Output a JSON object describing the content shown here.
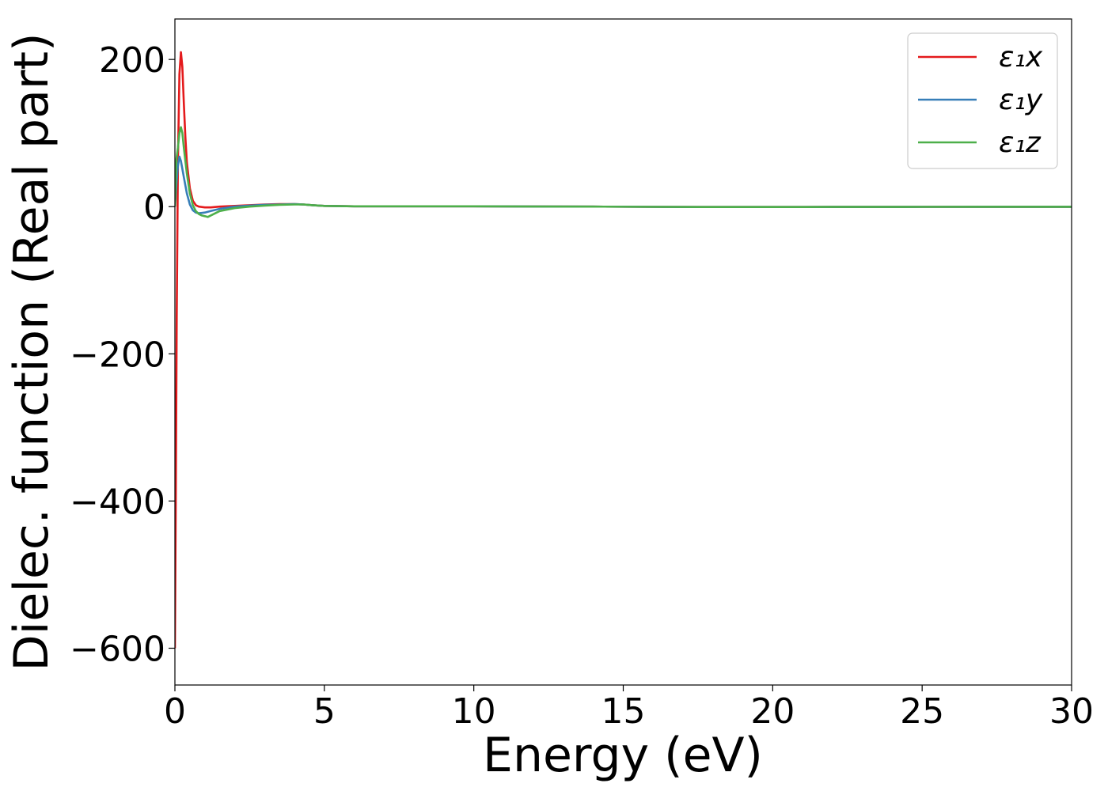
{
  "chart_data": {
    "type": "line",
    "title": "",
    "xlabel": "Energy (eV)",
    "ylabel": "Dielec. function (Real part)",
    "xlim": [
      0,
      30
    ],
    "ylim": [
      -650,
      255
    ],
    "xticks": [
      0,
      5,
      10,
      15,
      20,
      25,
      30
    ],
    "yticks": [
      -600,
      -400,
      -200,
      0,
      200
    ],
    "xtick_labels": [
      "0",
      "5",
      "10",
      "15",
      "20",
      "25",
      "30"
    ],
    "ytick_labels": [
      "−600",
      "−400",
      "−200",
      "0",
      "200"
    ],
    "grid": false,
    "legend_position": "top-right",
    "series": [
      {
        "name": "ε₁x",
        "color": "#e41a1c",
        "x": [
          0.0,
          0.03,
          0.06,
          0.1,
          0.15,
          0.2,
          0.25,
          0.3,
          0.35,
          0.4,
          0.5,
          0.6,
          0.7,
          0.8,
          1.0,
          1.2,
          1.5,
          2.0,
          2.5,
          3.0,
          3.5,
          4.0,
          4.3,
          4.6,
          5.0,
          6.0,
          7.0,
          8.0,
          9.0,
          10.0,
          11.0,
          12.0,
          14.0,
          16.0,
          18.0,
          20.0,
          22.0,
          25.0,
          28.0,
          30.0
        ],
        "y": [
          -600,
          -400,
          -150,
          60,
          180,
          210,
          190,
          140,
          95,
          60,
          25,
          8,
          2,
          0,
          -1,
          -1,
          0,
          1,
          2,
          3,
          3.5,
          3.5,
          3,
          2,
          1,
          0.5,
          0.5,
          0.5,
          0.5,
          0.5,
          0.3,
          0.2,
          0,
          -0.3,
          -0.5,
          -0.5,
          -0.4,
          -0.3,
          -0.2,
          -0.2
        ]
      },
      {
        "name": "ε₁y",
        "color": "#377eb8",
        "x": [
          0.0,
          0.05,
          0.1,
          0.15,
          0.2,
          0.3,
          0.4,
          0.5,
          0.6,
          0.7,
          0.8,
          1.0,
          1.2,
          1.5,
          2.0,
          2.5,
          3.0,
          3.5,
          4.0,
          4.3,
          4.6,
          5.0,
          6.0,
          7.0,
          8.0,
          9.0,
          10.0,
          12.0,
          14.0,
          16.0,
          18.0,
          20.0,
          22.0,
          25.0,
          28.0,
          30.0
        ],
        "y": [
          0,
          30,
          55,
          68,
          62,
          40,
          18,
          3,
          -5,
          -8,
          -9,
          -8,
          -6,
          -3,
          0,
          1.5,
          2.5,
          3,
          3.5,
          3,
          2,
          1,
          0.5,
          0.5,
          0.5,
          0.5,
          0.5,
          0.2,
          0,
          -0.3,
          -0.5,
          -0.5,
          -0.4,
          -0.3,
          -0.2,
          -0.2
        ]
      },
      {
        "name": "ε₁z",
        "color": "#4daf4a",
        "x": [
          0.0,
          0.05,
          0.1,
          0.15,
          0.2,
          0.25,
          0.3,
          0.4,
          0.5,
          0.6,
          0.7,
          0.8,
          0.9,
          1.0,
          1.1,
          1.2,
          1.5,
          2.0,
          2.5,
          3.0,
          3.5,
          4.0,
          4.3,
          4.6,
          5.0,
          6.0,
          7.0,
          8.0,
          9.0,
          10.0,
          12.0,
          14.0,
          16.0,
          18.0,
          20.0,
          22.0,
          25.0,
          28.0,
          30.0
        ],
        "y": [
          0,
          65,
          80,
          100,
          108,
          100,
          80,
          45,
          18,
          2,
          -6,
          -10,
          -12,
          -13,
          -14,
          -12,
          -6,
          -2,
          0,
          1.5,
          2.5,
          3,
          3,
          2,
          1,
          0.5,
          0.5,
          0.5,
          0.5,
          0.5,
          0.2,
          0,
          -0.3,
          -0.5,
          -0.5,
          -0.4,
          -0.3,
          -0.2,
          -0.2
        ]
      }
    ]
  }
}
